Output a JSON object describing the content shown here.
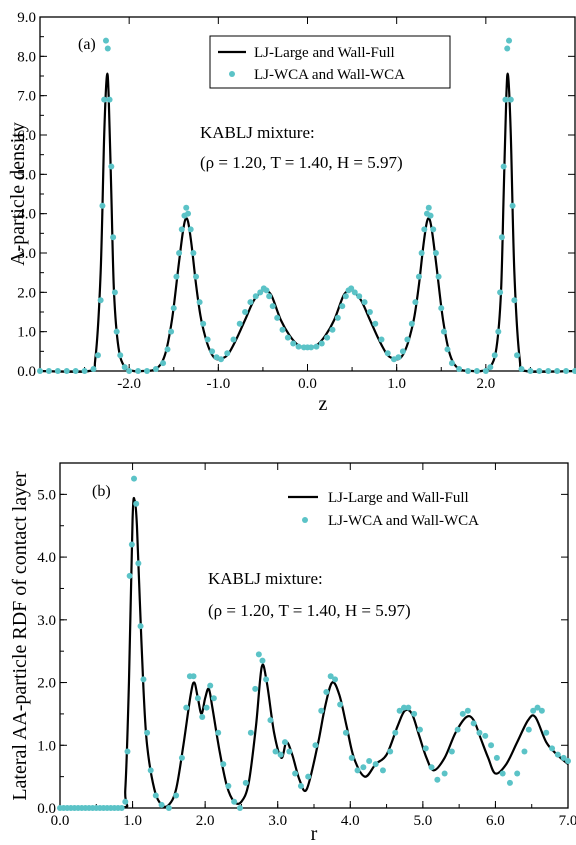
{
  "colors": {
    "line": "#000000",
    "points": "#5BC3C7",
    "frame": "#000000"
  },
  "chart_data": [
    {
      "type": "line",
      "panel_label": "(a)",
      "xlabel": "z",
      "ylabel": "A-particle density",
      "xlim": [
        -3.0,
        3.0
      ],
      "ylim": [
        0,
        9.0
      ],
      "x_ticks": [
        -2.0,
        -1.0,
        0.0,
        1.0,
        2.0
      ],
      "x_tick_labels": [
        "-2.0",
        "-1.0",
        "0.0",
        "1.0",
        "2.0"
      ],
      "y_ticks": [
        0,
        1,
        2,
        3,
        4,
        5,
        6,
        7,
        8,
        9
      ],
      "y_tick_labels": [
        "0.0",
        "1.0",
        "2.0",
        "3.0",
        "4.0",
        "5.0",
        "6.0",
        "7.0",
        "8.0",
        "9.0"
      ],
      "legend": {
        "position": "top-center",
        "entries": [
          "LJ-Large and Wall-Full",
          "LJ-WCA and Wall-WCA"
        ]
      },
      "annotations": [
        "KABLJ mixture:",
        "(ρ = 1.20, T = 1.40, H = 5.97)"
      ],
      "series": [
        {
          "name": "LJ-Large and Wall-Full",
          "style": "line",
          "x": [
            -3.0,
            -2.45,
            -2.38,
            -2.32,
            -2.28,
            -2.25,
            -2.23,
            -2.2,
            -2.17,
            -2.12,
            -2.05,
            -1.95,
            -1.85,
            -1.7,
            -1.6,
            -1.52,
            -1.45,
            -1.4,
            -1.37,
            -1.34,
            -1.3,
            -1.25,
            -1.2,
            -1.15,
            -1.1,
            -1.05,
            -1.0,
            -0.9,
            -0.8,
            -0.7,
            -0.6,
            -0.5,
            -0.46,
            -0.4,
            -0.3,
            -0.2,
            -0.1,
            0.0,
            0.1,
            0.2,
            0.3,
            0.4,
            0.46,
            0.5,
            0.6,
            0.7,
            0.8,
            0.9,
            1.0,
            1.05,
            1.1,
            1.15,
            1.2,
            1.25,
            1.3,
            1.34,
            1.37,
            1.4,
            1.45,
            1.52,
            1.6,
            1.7,
            1.85,
            1.95,
            2.05,
            2.12,
            2.17,
            2.2,
            2.23,
            2.25,
            2.28,
            2.32,
            2.38,
            2.45,
            3.0
          ],
          "y": [
            0.0,
            0.0,
            0.3,
            2.5,
            6.0,
            7.5,
            7.0,
            4.5,
            2.0,
            0.6,
            0.1,
            0.0,
            0.0,
            0.05,
            0.4,
            1.3,
            2.6,
            3.5,
            3.85,
            3.8,
            3.2,
            2.2,
            1.4,
            0.9,
            0.55,
            0.35,
            0.3,
            0.4,
            0.8,
            1.3,
            1.8,
            2.05,
            2.05,
            1.9,
            1.3,
            0.9,
            0.65,
            0.6,
            0.65,
            0.9,
            1.3,
            1.9,
            2.05,
            2.05,
            1.8,
            1.3,
            0.8,
            0.4,
            0.3,
            0.35,
            0.55,
            0.9,
            1.4,
            2.2,
            3.2,
            3.8,
            3.85,
            3.5,
            2.6,
            1.3,
            0.4,
            0.05,
            0.0,
            0.0,
            0.1,
            0.6,
            2.0,
            4.5,
            7.0,
            7.5,
            6.0,
            2.5,
            0.3,
            0.0,
            0.0
          ]
        },
        {
          "name": "LJ-WCA and Wall-WCA",
          "style": "points",
          "x": [
            -3.0,
            -2.9,
            -2.8,
            -2.7,
            -2.6,
            -2.5,
            -2.4,
            -2.35,
            -2.32,
            -2.3,
            -2.28,
            -2.26,
            -2.24,
            -2.22,
            -2.2,
            -2.18,
            -2.16,
            -2.14,
            -2.1,
            -2.05,
            -2.0,
            -1.9,
            -1.8,
            -1.7,
            -1.62,
            -1.57,
            -1.53,
            -1.5,
            -1.47,
            -1.44,
            -1.41,
            -1.38,
            -1.36,
            -1.34,
            -1.31,
            -1.28,
            -1.25,
            -1.21,
            -1.17,
            -1.12,
            -1.07,
            -1.02,
            -0.97,
            -0.9,
            -0.83,
            -0.76,
            -0.7,
            -0.64,
            -0.58,
            -0.53,
            -0.49,
            -0.46,
            -0.43,
            -0.39,
            -0.34,
            -0.28,
            -0.22,
            -0.16,
            -0.1,
            -0.04,
            0.0,
            0.04,
            0.1,
            0.16,
            0.22,
            0.28,
            0.34,
            0.39,
            0.43,
            0.46,
            0.49,
            0.53,
            0.58,
            0.64,
            0.7,
            0.76,
            0.83,
            0.9,
            0.97,
            1.02,
            1.07,
            1.12,
            1.17,
            1.21,
            1.25,
            1.28,
            1.31,
            1.34,
            1.36,
            1.38,
            1.41,
            1.44,
            1.47,
            1.5,
            1.53,
            1.57,
            1.62,
            1.7,
            1.8,
            1.9,
            2.0,
            2.05,
            2.1,
            2.14,
            2.16,
            2.18,
            2.2,
            2.22,
            2.24,
            2.26,
            2.28,
            2.3,
            2.32,
            2.35,
            2.4,
            2.5,
            2.6,
            2.7,
            2.8,
            2.9,
            3.0
          ],
          "y": [
            0.0,
            0.0,
            0.0,
            0.0,
            0.0,
            0.0,
            0.05,
            0.4,
            1.8,
            4.2,
            6.9,
            8.4,
            8.2,
            6.9,
            5.2,
            3.4,
            2.0,
            1.0,
            0.4,
            0.1,
            0.0,
            0.0,
            0.0,
            0.05,
            0.2,
            0.55,
            1.0,
            1.6,
            2.4,
            3.0,
            3.6,
            3.95,
            4.15,
            4.0,
            3.6,
            3.0,
            2.4,
            1.75,
            1.2,
            0.8,
            0.5,
            0.35,
            0.3,
            0.45,
            0.8,
            1.2,
            1.5,
            1.75,
            1.9,
            2.0,
            2.1,
            2.05,
            1.9,
            1.65,
            1.35,
            1.05,
            0.85,
            0.7,
            0.62,
            0.6,
            0.6,
            0.6,
            0.62,
            0.7,
            0.85,
            1.05,
            1.35,
            1.65,
            1.9,
            2.05,
            2.1,
            2.0,
            1.9,
            1.75,
            1.5,
            1.2,
            0.8,
            0.45,
            0.3,
            0.35,
            0.5,
            0.8,
            1.2,
            1.75,
            2.4,
            3.0,
            3.6,
            4.0,
            4.15,
            3.95,
            3.6,
            3.0,
            2.4,
            1.6,
            1.0,
            0.55,
            0.2,
            0.05,
            0.0,
            0.0,
            0.0,
            0.1,
            0.4,
            1.0,
            2.0,
            3.4,
            5.2,
            6.9,
            8.2,
            8.4,
            6.9,
            4.2,
            1.8,
            0.4,
            0.05,
            0.0,
            0.0,
            0.0,
            0.0,
            0.0,
            0.0
          ]
        }
      ]
    },
    {
      "type": "line",
      "panel_label": "(b)",
      "xlabel": "r",
      "ylabel": "Lateral AA-particle RDF of contact layer",
      "xlim": [
        0.0,
        7.0
      ],
      "ylim": [
        0,
        5.5
      ],
      "x_ticks": [
        0,
        1,
        2,
        3,
        4,
        5,
        6,
        7
      ],
      "x_tick_labels": [
        "0.0",
        "1.0",
        "2.0",
        "3.0",
        "4.0",
        "5.0",
        "6.0",
        "7.0"
      ],
      "y_ticks": [
        0,
        1,
        2,
        3,
        4,
        5
      ],
      "y_tick_labels": [
        "0.0",
        "1.0",
        "2.0",
        "3.0",
        "4.0",
        "5.0"
      ],
      "legend": {
        "position": "top-right",
        "entries": [
          "LJ-Large and Wall-Full",
          "LJ-WCA and Wall-WCA"
        ]
      },
      "annotations": [
        "KABLJ mixture:",
        "(ρ = 1.20, T = 1.40, H = 5.97)"
      ],
      "series": [
        {
          "name": "LJ-Large and Wall-Full",
          "style": "line",
          "x": [
            0.0,
            0.85,
            0.9,
            0.95,
            1.0,
            1.03,
            1.06,
            1.1,
            1.15,
            1.2,
            1.3,
            1.4,
            1.5,
            1.6,
            1.7,
            1.8,
            1.85,
            1.9,
            1.95,
            2.0,
            2.05,
            2.1,
            2.2,
            2.3,
            2.4,
            2.5,
            2.6,
            2.7,
            2.78,
            2.85,
            2.95,
            3.05,
            3.12,
            3.2,
            3.3,
            3.4,
            3.55,
            3.65,
            3.75,
            3.85,
            3.95,
            4.05,
            4.2,
            4.35,
            4.5,
            4.65,
            4.75,
            4.85,
            4.95,
            5.05,
            5.15,
            5.3,
            5.45,
            5.6,
            5.7,
            5.8,
            5.9,
            6.0,
            6.15,
            6.3,
            6.45,
            6.55,
            6.7,
            6.85,
            7.0
          ],
          "y": [
            0.0,
            0.0,
            0.3,
            2.0,
            4.6,
            4.9,
            4.5,
            3.3,
            1.9,
            1.0,
            0.3,
            0.05,
            0.05,
            0.3,
            1.0,
            1.8,
            2.0,
            1.75,
            1.5,
            1.75,
            1.9,
            1.6,
            0.9,
            0.35,
            0.1,
            0.1,
            0.4,
            1.3,
            2.25,
            2.0,
            1.2,
            0.8,
            1.05,
            0.85,
            0.45,
            0.3,
            1.0,
            1.6,
            2.0,
            1.8,
            1.3,
            0.8,
            0.5,
            0.7,
            0.85,
            1.3,
            1.55,
            1.5,
            1.15,
            0.8,
            0.6,
            0.8,
            1.2,
            1.45,
            1.4,
            1.1,
            0.8,
            0.55,
            0.7,
            1.05,
            1.4,
            1.45,
            1.05,
            0.85,
            0.7
          ]
        },
        {
          "name": "LJ-WCA and Wall-WCA",
          "style": "points",
          "x": [
            0.0,
            0.05,
            0.1,
            0.15,
            0.2,
            0.25,
            0.3,
            0.35,
            0.4,
            0.45,
            0.5,
            0.55,
            0.6,
            0.65,
            0.7,
            0.75,
            0.8,
            0.85,
            0.9,
            0.93,
            0.96,
            0.99,
            1.02,
            1.05,
            1.08,
            1.11,
            1.15,
            1.2,
            1.25,
            1.32,
            1.4,
            1.5,
            1.6,
            1.68,
            1.74,
            1.79,
            1.84,
            1.9,
            1.96,
            2.02,
            2.07,
            2.12,
            2.18,
            2.25,
            2.32,
            2.4,
            2.48,
            2.56,
            2.63,
            2.69,
            2.74,
            2.79,
            2.84,
            2.9,
            2.97,
            3.04,
            3.1,
            3.16,
            3.24,
            3.32,
            3.42,
            3.52,
            3.6,
            3.67,
            3.73,
            3.79,
            3.86,
            3.94,
            4.02,
            4.1,
            4.18,
            4.26,
            4.35,
            4.45,
            4.55,
            4.62,
            4.68,
            4.74,
            4.8,
            4.88,
            4.96,
            5.04,
            5.12,
            5.2,
            5.3,
            5.4,
            5.48,
            5.55,
            5.62,
            5.7,
            5.78,
            5.86,
            5.94,
            6.02,
            6.1,
            6.2,
            6.3,
            6.4,
            6.46,
            6.52,
            6.58,
            6.64,
            6.7,
            6.78,
            6.86,
            6.94,
            7.0
          ],
          "y": [
            0.0,
            0.0,
            0.0,
            0.0,
            0.0,
            0.0,
            0.0,
            0.0,
            0.0,
            0.0,
            0.0,
            0.0,
            0.0,
            0.0,
            0.0,
            0.0,
            0.0,
            0.0,
            0.1,
            0.9,
            3.7,
            4.2,
            5.25,
            4.85,
            3.9,
            2.9,
            2.05,
            1.2,
            0.6,
            0.2,
            0.05,
            0.0,
            0.2,
            0.8,
            1.6,
            2.1,
            2.1,
            1.75,
            1.45,
            1.6,
            1.95,
            1.75,
            1.2,
            0.7,
            0.35,
            0.1,
            0.0,
            0.4,
            1.2,
            1.9,
            2.45,
            2.35,
            2.05,
            1.4,
            0.9,
            0.85,
            1.05,
            0.9,
            0.55,
            0.35,
            0.5,
            1.0,
            1.55,
            1.85,
            2.1,
            2.05,
            1.65,
            1.2,
            0.8,
            0.6,
            0.65,
            0.75,
            0.7,
            0.6,
            0.9,
            1.2,
            1.55,
            1.6,
            1.6,
            1.5,
            1.25,
            0.95,
            0.65,
            0.45,
            0.55,
            0.9,
            1.25,
            1.5,
            1.55,
            1.35,
            1.2,
            1.15,
            1.0,
            0.8,
            0.55,
            0.4,
            0.55,
            0.9,
            1.25,
            1.55,
            1.6,
            1.55,
            1.2,
            0.95,
            0.85,
            0.8,
            0.75
          ]
        }
      ]
    }
  ]
}
